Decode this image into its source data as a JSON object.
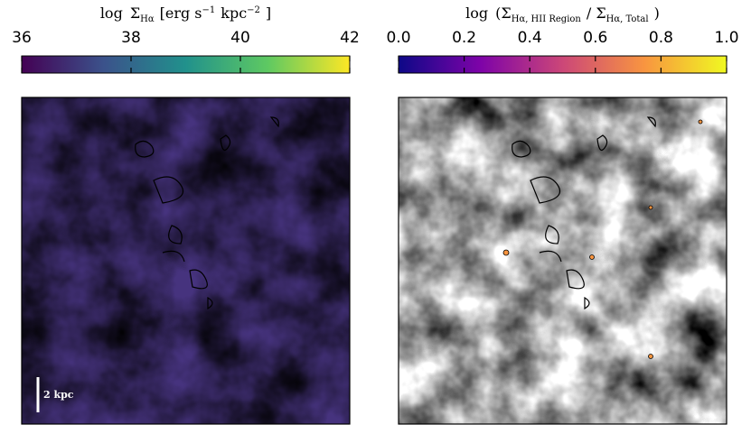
{
  "chart_data": [
    {
      "type": "colormap-image",
      "title_parts": [
        "log",
        "Σ",
        "Hα",
        "[erg s",
        "−1",
        "kpc",
        "−2",
        "]"
      ],
      "clim": [
        36,
        42
      ],
      "cticks": [
        36,
        38,
        40,
        42
      ],
      "colors": [
        "#440154",
        "#3b528b",
        "#21918c",
        "#5ec962",
        "#fde725"
      ],
      "scale_bar_label": "2 kpc"
    },
    {
      "type": "colormap-image",
      "title_parts": [
        "log",
        "(Σ",
        "Hα, HII Region",
        "/ Σ",
        "Hα, Total",
        ")"
      ],
      "clim": [
        0,
        1
      ],
      "cticks": [
        {
          "value": 0,
          "label": "0.0"
        },
        0.2,
        0.4,
        0.6,
        0.8,
        {
          "value": 1,
          "label": "1.0"
        }
      ],
      "colors": [
        "#0d0887",
        "#7e03a8",
        "#cc4778",
        "#f89540",
        "#f0f921"
      ]
    }
  ]
}
